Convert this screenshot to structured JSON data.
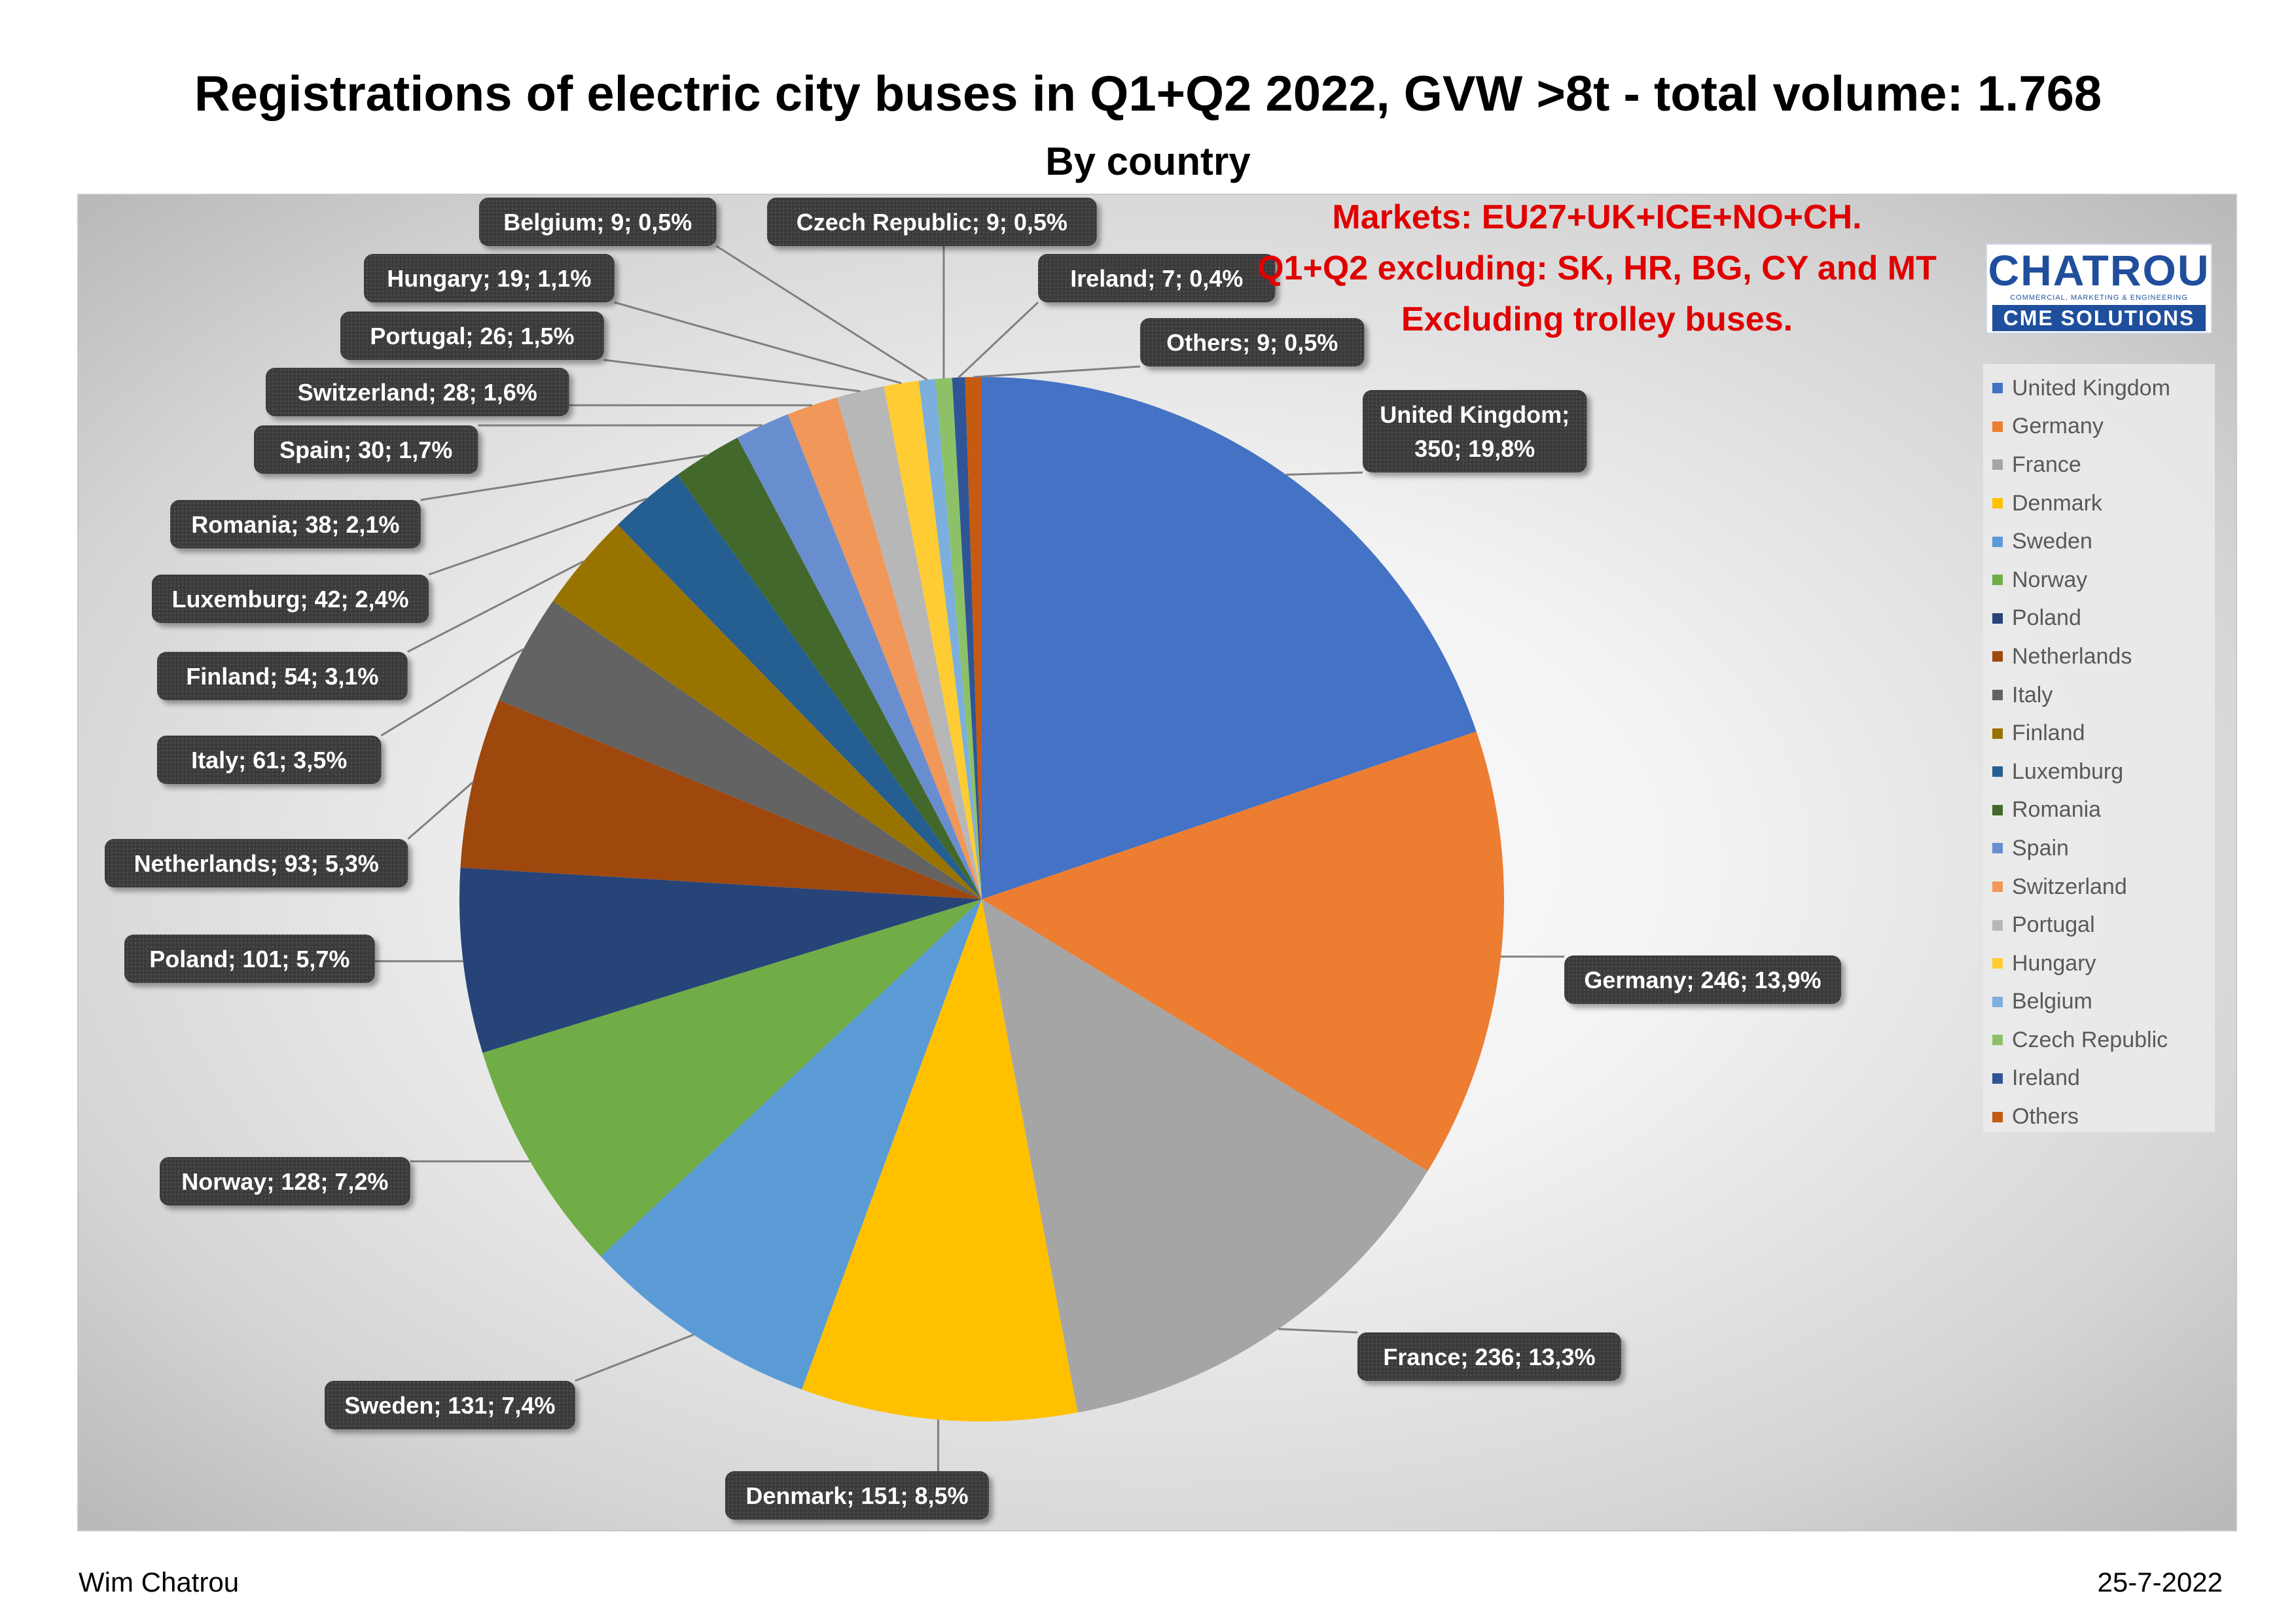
{
  "chart_data": {
    "type": "pie",
    "title": "Registrations of electric city buses in Q1+Q2 2022, GVW >8t - total volume: 1.768",
    "subtitle": "By country",
    "annotations": [
      "Markets: EU27+UK+ICE+NO+CH.",
      "Q1+Q2 excluding: SK, HR, BG, CY and MT",
      "Excluding trolley buses."
    ],
    "legend_position": "right",
    "slices": [
      {
        "name": "United Kingdom",
        "value": 350,
        "percent": "19,8%",
        "color": "#4472C4",
        "label_lines": [
          "United Kingdom;",
          "350; 19,8%"
        ]
      },
      {
        "name": "Germany",
        "value": 246,
        "percent": "13,9%",
        "color": "#ED7D31",
        "label_lines": [
          "Germany; 246; 13,9%"
        ]
      },
      {
        "name": "France",
        "value": 236,
        "percent": "13,3%",
        "color": "#A5A5A5",
        "label_lines": [
          "France; 236; 13,3%"
        ]
      },
      {
        "name": "Denmark",
        "value": 151,
        "percent": "8,5%",
        "color": "#FFC000",
        "label_lines": [
          "Denmark; 151; 8,5%"
        ]
      },
      {
        "name": "Sweden",
        "value": 131,
        "percent": "7,4%",
        "color": "#5B9BD5",
        "label_lines": [
          "Sweden; 131; 7,4%"
        ]
      },
      {
        "name": "Norway",
        "value": 128,
        "percent": "7,2%",
        "color": "#70AD47",
        "label_lines": [
          "Norway; 128; 7,2%"
        ]
      },
      {
        "name": "Poland",
        "value": 101,
        "percent": "5,7%",
        "color": "#264478",
        "label_lines": [
          "Poland; 101; 5,7%"
        ]
      },
      {
        "name": "Netherlands",
        "value": 93,
        "percent": "5,3%",
        "color": "#9E480E",
        "label_lines": [
          "Netherlands; 93; 5,3%"
        ]
      },
      {
        "name": "Italy",
        "value": 61,
        "percent": "3,5%",
        "color": "#636363",
        "label_lines": [
          "Italy; 61; 3,5%"
        ]
      },
      {
        "name": "Finland",
        "value": 54,
        "percent": "3,1%",
        "color": "#997300",
        "label_lines": [
          "Finland; 54; 3,1%"
        ]
      },
      {
        "name": "Luxemburg",
        "value": 42,
        "percent": "2,4%",
        "color": "#255E91",
        "label_lines": [
          "Luxemburg; 42; 2,4%"
        ]
      },
      {
        "name": "Romania",
        "value": 38,
        "percent": "2,1%",
        "color": "#43682B",
        "label_lines": [
          "Romania; 38; 2,1%"
        ]
      },
      {
        "name": "Spain",
        "value": 30,
        "percent": "1,7%",
        "color": "#698ED0",
        "label_lines": [
          "Spain; 30; 1,7%"
        ]
      },
      {
        "name": "Switzerland",
        "value": 28,
        "percent": "1,6%",
        "color": "#F1975A",
        "label_lines": [
          "Switzerland; 28; 1,6%"
        ]
      },
      {
        "name": "Portugal",
        "value": 26,
        "percent": "1,5%",
        "color": "#B7B7B7",
        "label_lines": [
          "Portugal; 26; 1,5%"
        ]
      },
      {
        "name": "Hungary",
        "value": 19,
        "percent": "1,1%",
        "color": "#FFCD33",
        "label_lines": [
          "Hungary; 19; 1,1%"
        ]
      },
      {
        "name": "Belgium",
        "value": 9,
        "percent": "0,5%",
        "color": "#7CAFDD",
        "label_lines": [
          "Belgium; 9; 0,5%"
        ]
      },
      {
        "name": "Czech Republic",
        "value": 9,
        "percent": "0,5%",
        "color": "#8CC168",
        "label_lines": [
          "Czech Republic; 9; 0,5%"
        ]
      },
      {
        "name": "Ireland",
        "value": 7,
        "percent": "0,4%",
        "color": "#2F5597",
        "label_lines": [
          "Ireland; 7; 0,4%"
        ]
      },
      {
        "name": "Others",
        "value": 9,
        "percent": "0,5%",
        "color": "#C55A11",
        "label_lines": [
          "Others; 9; 0,5%"
        ]
      }
    ]
  },
  "logo": {
    "top": "CHATROU",
    "tagline": "COMMERCIAL, MARKETING & ENGINEERING",
    "bottom": "CME SOLUTIONS"
  },
  "footer": {
    "author": "Wim Chatrou",
    "date": "25-7-2022"
  }
}
